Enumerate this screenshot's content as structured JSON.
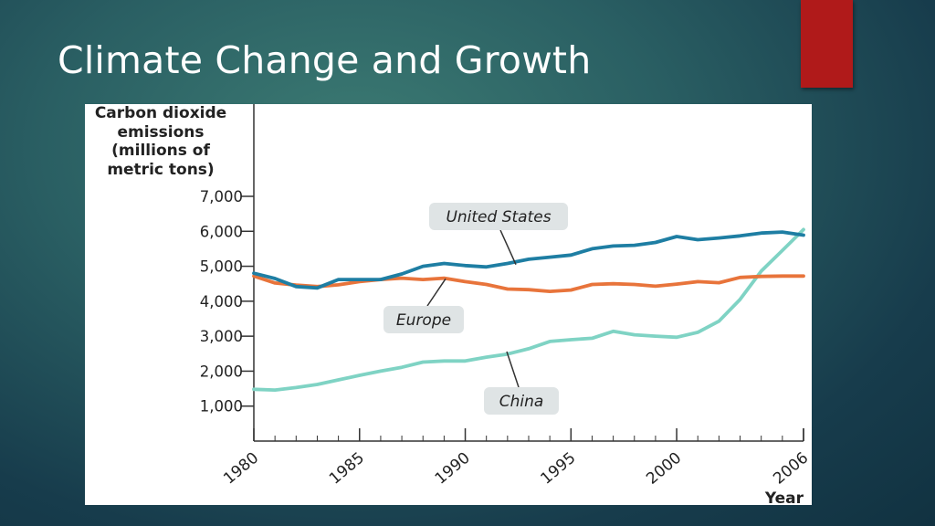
{
  "slide": {
    "title": "Climate Change and Growth"
  },
  "colors": {
    "accent": "#b01a1a",
    "united_states": "#1e7ea3",
    "europe": "#e8743b",
    "china": "#7fd3c4",
    "label_box": "#dfe4e5"
  },
  "chart_data": {
    "type": "line",
    "ylabel_lines": [
      "Carbon dioxide",
      "emissions",
      "(millions of",
      "metric tons)"
    ],
    "xlabel": "Year",
    "ylim": [
      0,
      7000
    ],
    "xlim": [
      1980,
      2006
    ],
    "yticks": [
      1000,
      2000,
      3000,
      4000,
      5000,
      6000,
      7000
    ],
    "ytick_labels": [
      "1,000",
      "2,000",
      "3,000",
      "4,000",
      "5,000",
      "6,000",
      "7,000"
    ],
    "xticks": [
      1980,
      1985,
      1990,
      1995,
      2000,
      2006
    ],
    "xtick_labels": [
      "1980",
      "1985",
      "1990",
      "1995",
      "2000",
      "2006"
    ],
    "grid": false,
    "x": [
      1980,
      1981,
      1982,
      1983,
      1984,
      1985,
      1986,
      1987,
      1988,
      1989,
      1990,
      1991,
      1992,
      1993,
      1994,
      1995,
      1996,
      1997,
      1998,
      1999,
      2000,
      2001,
      2002,
      2003,
      2004,
      2005,
      2006
    ],
    "series": [
      {
        "name": "United States",
        "values": [
          4800,
          4650,
          4420,
          4380,
          4620,
          4620,
          4620,
          4780,
          5000,
          5080,
          5020,
          4980,
          5080,
          5200,
          5260,
          5320,
          5500,
          5580,
          5600,
          5680,
          5850,
          5760,
          5810,
          5870,
          5950,
          5980,
          5890
        ]
      },
      {
        "name": "Europe",
        "values": [
          4720,
          4520,
          4460,
          4420,
          4470,
          4560,
          4620,
          4660,
          4620,
          4660,
          4560,
          4480,
          4350,
          4330,
          4280,
          4320,
          4480,
          4500,
          4480,
          4430,
          4490,
          4560,
          4530,
          4680,
          4710,
          4720,
          4720
        ]
      },
      {
        "name": "China",
        "values": [
          1480,
          1460,
          1530,
          1620,
          1750,
          1880,
          2000,
          2110,
          2260,
          2290,
          2290,
          2400,
          2490,
          2640,
          2850,
          2900,
          2940,
          3140,
          3040,
          3000,
          2970,
          3110,
          3430,
          4050,
          4860,
          5450,
          6050
        ]
      }
    ]
  }
}
